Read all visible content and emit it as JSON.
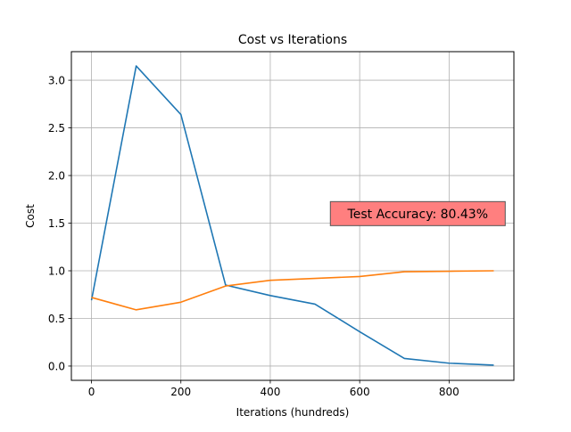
{
  "chart_data": {
    "type": "line",
    "title": "Cost vs Iterations",
    "xlabel": "Iterations (hundreds)",
    "ylabel": "Cost",
    "xlim": [
      -45,
      945
    ],
    "ylim": [
      -0.15,
      3.3
    ],
    "xticks": [
      0,
      200,
      400,
      600,
      800
    ],
    "xtick_labels": [
      "0",
      "200",
      "400",
      "600",
      "800"
    ],
    "yticks": [
      0.0,
      0.5,
      1.0,
      1.5,
      2.0,
      2.5,
      3.0
    ],
    "ytick_labels": [
      "0.0",
      "0.5",
      "1.0",
      "1.5",
      "2.0",
      "2.5",
      "3.0"
    ],
    "grid": true,
    "x": [
      0,
      100,
      200,
      300,
      400,
      500,
      600,
      700,
      800,
      900
    ],
    "series": [
      {
        "color": "#1f77b4",
        "values": [
          0.69,
          3.15,
          2.64,
          0.85,
          0.74,
          0.65,
          0.36,
          0.08,
          0.03,
          0.01
        ]
      },
      {
        "color": "#ff7f0e",
        "values": [
          0.72,
          0.59,
          0.67,
          0.84,
          0.9,
          0.92,
          0.94,
          0.99,
          0.995,
          1.0
        ]
      }
    ],
    "annotations": [
      {
        "text": "Test Accuracy: 80.43%",
        "x": 730,
        "y": 1.6,
        "box_color": "#ff7f7f"
      }
    ]
  }
}
